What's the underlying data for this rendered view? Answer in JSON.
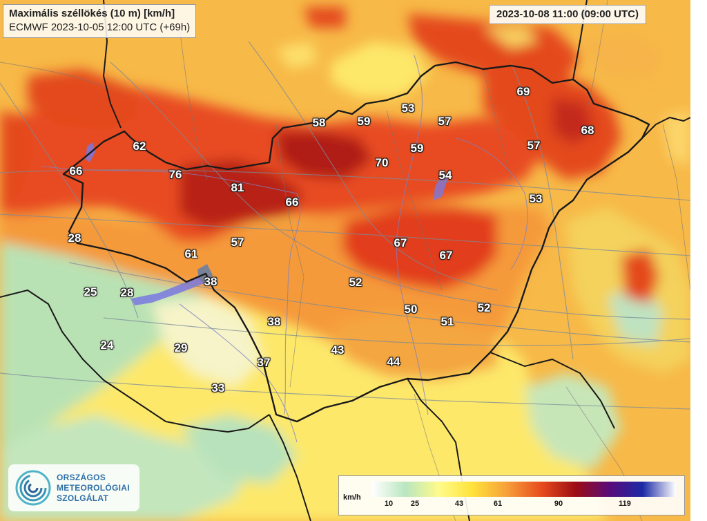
{
  "header": {
    "title_line1": "Maximális széllökés (10 m) [km/h]",
    "title_line2": "ECMWF 2023-10-05 12:00 UTC (+69h)",
    "valid_time": "2023-10-08 11:00 (09:00 UTC)"
  },
  "values": [
    "62",
    "66",
    "76",
    "81",
    "66",
    "58",
    "59",
    "53",
    "57",
    "59",
    "70",
    "54",
    "69",
    "68",
    "57",
    "53",
    "28",
    "57",
    "61",
    "38",
    "25",
    "28",
    "67",
    "67",
    "52",
    "50",
    "51",
    "52",
    "38",
    "24",
    "29",
    "37",
    "43",
    "44",
    "33"
  ],
  "legend": {
    "unit": "km/h",
    "ticks": [
      "10",
      "25",
      "43",
      "61",
      "90",
      "119"
    ],
    "colors": [
      "#ffffff",
      "#b9e6c0",
      "#fffb8a",
      "#ffe23a",
      "#f7a23a",
      "#e64a1c",
      "#9c0d14",
      "#5a0b7a",
      "#1c2aa6",
      "#ffffff"
    ]
  },
  "logo": {
    "line1": "ORSZÁGOS",
    "line2": "METEOROLÓGIAI",
    "line3": "SZOLGÁLAT"
  }
}
